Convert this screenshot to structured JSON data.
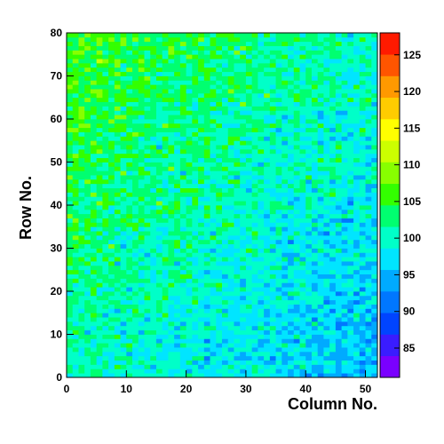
{
  "chart_data": {
    "type": "heatmap",
    "title": "",
    "xlabel": "Column No.",
    "ylabel": "Row No.",
    "x_range": [
      0,
      52
    ],
    "y_range": [
      0,
      80
    ],
    "x_bins": 52,
    "y_bins": 80,
    "x_ticks": [
      "0",
      "10",
      "20",
      "30",
      "40",
      "50"
    ],
    "y_ticks": [
      "0",
      "10",
      "20",
      "30",
      "40",
      "50",
      "60",
      "70",
      "80"
    ],
    "z_range": [
      81,
      128
    ],
    "z_ticks": [
      "85",
      "90",
      "95",
      "100",
      "105",
      "110",
      "115",
      "120",
      "125"
    ],
    "value_summary": {
      "upper_left_mean": 106,
      "lower_right_mean": 95,
      "cell_noise": 4,
      "seed": 12345
    },
    "colorscale": [
      "#7a00ff",
      "#3a1cff",
      "#0044ff",
      "#0077ff",
      "#00aaff",
      "#00e5ff",
      "#00ffc8",
      "#00ff70",
      "#33ff00",
      "#88ff00",
      "#ccff00",
      "#ffff00",
      "#ffcc00",
      "#ff9900",
      "#ff5500",
      "#ff1a00"
    ]
  }
}
